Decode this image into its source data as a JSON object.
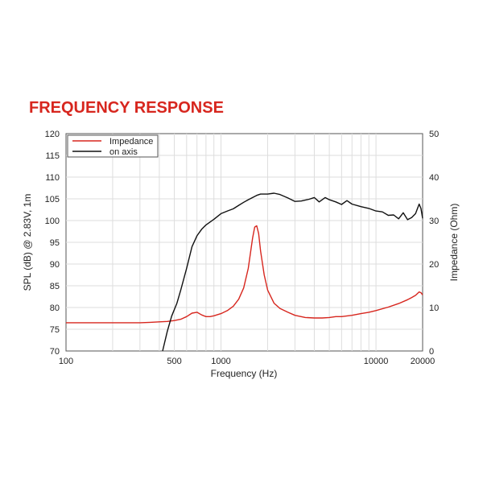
{
  "heading": "FREQUENCY RESPONSE",
  "chart_data": {
    "type": "line",
    "xlabel": "Frequency (Hz)",
    "ylabel_left": "SPL (dB) @ 2.83V, 1m",
    "ylabel_right": "Impedance (Ohm)",
    "x_scale": "log",
    "xlim": [
      100,
      20000
    ],
    "ylim_left": [
      70,
      120
    ],
    "ylim_right": [
      0,
      50
    ],
    "x_ticks": [
      100,
      500,
      1000,
      10000,
      20000
    ],
    "x_tick_labels": [
      "100",
      "500",
      "1000",
      "10000",
      "20000"
    ],
    "y_left_ticks": [
      70,
      75,
      80,
      85,
      90,
      95,
      100,
      105,
      110,
      115,
      120
    ],
    "y_left_tick_labels": [
      "70",
      "75",
      "80",
      "85",
      "90",
      "95",
      "100",
      "105",
      "110",
      "115",
      "120"
    ],
    "y_right_ticks": [
      0,
      10,
      20,
      30,
      40,
      50
    ],
    "y_right_tick_labels": [
      "0",
      "10",
      "20",
      "30",
      "40",
      "50"
    ],
    "grid": true,
    "legend_position": "top-left",
    "series": [
      {
        "name": "Impedance",
        "axis": "right",
        "color": "#d7261e",
        "points": [
          [
            100,
            6.5
          ],
          [
            200,
            6.5
          ],
          [
            300,
            6.5
          ],
          [
            350,
            6.6
          ],
          [
            400,
            6.7
          ],
          [
            450,
            6.8
          ],
          [
            500,
            7.0
          ],
          [
            550,
            7.3
          ],
          [
            600,
            7.9
          ],
          [
            650,
            8.7
          ],
          [
            700,
            8.9
          ],
          [
            750,
            8.3
          ],
          [
            800,
            7.9
          ],
          [
            850,
            7.9
          ],
          [
            900,
            8.1
          ],
          [
            1000,
            8.6
          ],
          [
            1100,
            9.3
          ],
          [
            1200,
            10.3
          ],
          [
            1300,
            11.9
          ],
          [
            1400,
            14.5
          ],
          [
            1500,
            19.0
          ],
          [
            1600,
            26.0
          ],
          [
            1650,
            28.5
          ],
          [
            1700,
            28.8
          ],
          [
            1750,
            27.0
          ],
          [
            1800,
            23.0
          ],
          [
            1900,
            17.5
          ],
          [
            2000,
            14.0
          ],
          [
            2200,
            11.0
          ],
          [
            2400,
            9.8
          ],
          [
            2700,
            8.9
          ],
          [
            3000,
            8.2
          ],
          [
            3500,
            7.7
          ],
          [
            4000,
            7.6
          ],
          [
            4500,
            7.6
          ],
          [
            5000,
            7.7
          ],
          [
            5500,
            7.9
          ],
          [
            6000,
            7.9
          ],
          [
            7000,
            8.2
          ],
          [
            8000,
            8.6
          ],
          [
            9000,
            8.9
          ],
          [
            10000,
            9.3
          ],
          [
            12000,
            10.1
          ],
          [
            14000,
            10.9
          ],
          [
            16000,
            11.8
          ],
          [
            17000,
            12.3
          ],
          [
            18000,
            12.8
          ],
          [
            19000,
            13.6
          ],
          [
            19500,
            13.4
          ],
          [
            20000,
            12.9
          ]
        ]
      },
      {
        "name": "on axis",
        "axis": "left",
        "color": "#111111",
        "points": [
          [
            420,
            70.0
          ],
          [
            450,
            74.5
          ],
          [
            480,
            78.0
          ],
          [
            520,
            81.0
          ],
          [
            550,
            84.0
          ],
          [
            600,
            89.0
          ],
          [
            650,
            94.0
          ],
          [
            700,
            96.5
          ],
          [
            750,
            98.0
          ],
          [
            800,
            99.0
          ],
          [
            900,
            100.3
          ],
          [
            1000,
            101.6
          ],
          [
            1100,
            102.2
          ],
          [
            1200,
            102.7
          ],
          [
            1300,
            103.5
          ],
          [
            1400,
            104.2
          ],
          [
            1500,
            104.8
          ],
          [
            1700,
            105.8
          ],
          [
            1800,
            106.1
          ],
          [
            2000,
            106.1
          ],
          [
            2200,
            106.3
          ],
          [
            2400,
            106.0
          ],
          [
            2700,
            105.2
          ],
          [
            3000,
            104.4
          ],
          [
            3300,
            104.5
          ],
          [
            3700,
            104.9
          ],
          [
            4000,
            105.3
          ],
          [
            4300,
            104.3
          ],
          [
            4700,
            105.3
          ],
          [
            5000,
            104.8
          ],
          [
            5500,
            104.3
          ],
          [
            6000,
            103.7
          ],
          [
            6500,
            104.6
          ],
          [
            7000,
            103.8
          ],
          [
            8000,
            103.2
          ],
          [
            9000,
            102.8
          ],
          [
            10000,
            102.2
          ],
          [
            11000,
            102.0
          ],
          [
            12000,
            101.2
          ],
          [
            13000,
            101.3
          ],
          [
            14000,
            100.4
          ],
          [
            15000,
            101.8
          ],
          [
            16000,
            100.2
          ],
          [
            17000,
            100.7
          ],
          [
            18000,
            101.6
          ],
          [
            19000,
            103.8
          ],
          [
            19500,
            102.8
          ],
          [
            20000,
            100.5
          ]
        ]
      }
    ]
  }
}
